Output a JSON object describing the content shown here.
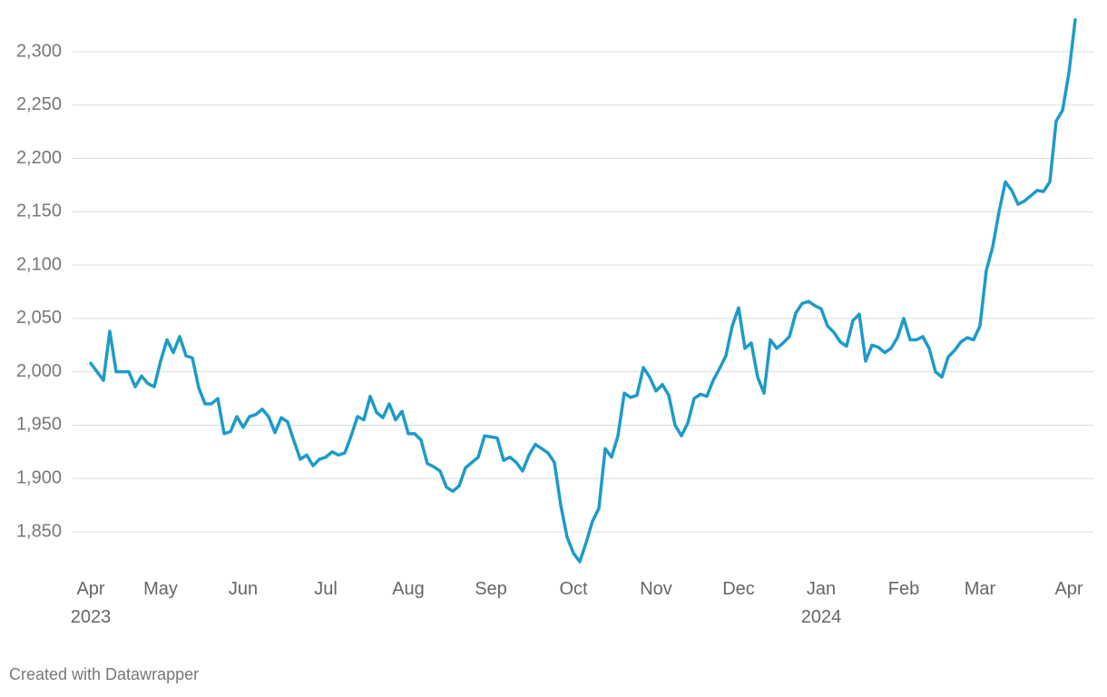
{
  "chart_data": {
    "type": "line",
    "categories": [
      "Apr 2023",
      null,
      null,
      null,
      null,
      null,
      null,
      null,
      null,
      null,
      null,
      "May",
      null,
      null,
      null,
      null,
      null,
      null,
      null,
      null,
      null,
      null,
      null,
      null,
      "Jun",
      null,
      null,
      null,
      null,
      null,
      null,
      null,
      null,
      null,
      null,
      null,
      null,
      "Jul",
      null,
      null,
      null,
      null,
      null,
      null,
      null,
      null,
      null,
      null,
      null,
      null,
      "Aug",
      null,
      null,
      null,
      null,
      null,
      null,
      null,
      null,
      null,
      null,
      null,
      null,
      "Sep",
      null,
      null,
      null,
      null,
      null,
      null,
      null,
      null,
      null,
      null,
      null,
      null,
      "Oct",
      null,
      null,
      null,
      null,
      null,
      null,
      null,
      null,
      null,
      null,
      null,
      null,
      "Nov",
      null,
      null,
      null,
      null,
      null,
      null,
      null,
      null,
      null,
      null,
      null,
      null,
      "Dec",
      null,
      null,
      null,
      null,
      null,
      null,
      null,
      null,
      null,
      null,
      null,
      null,
      "Jan 2024",
      null,
      null,
      null,
      null,
      null,
      null,
      null,
      null,
      null,
      null,
      null,
      null,
      "Feb",
      null,
      null,
      null,
      null,
      null,
      null,
      null,
      null,
      null,
      null,
      null,
      "Mar",
      null,
      null,
      null,
      null,
      null,
      null,
      null,
      null,
      null,
      null,
      null,
      null,
      null,
      "Apr",
      null
    ],
    "values": [
      2008,
      2000,
      1992,
      2038,
      2000,
      2000,
      2000,
      1986,
      1996,
      1989,
      1986,
      2010,
      2030,
      2018,
      2033,
      2015,
      2013,
      1985,
      1970,
      1970,
      1975,
      1942,
      1944,
      1958,
      1948,
      1958,
      1960,
      1965,
      1958,
      1943,
      1957,
      1953,
      1935,
      1918,
      1922,
      1912,
      1918,
      1920,
      1925,
      1922,
      1924,
      1940,
      1958,
      1955,
      1977,
      1962,
      1957,
      1970,
      1955,
      1963,
      1942,
      1942,
      1936,
      1914,
      1911,
      1907,
      1892,
      1888,
      1893,
      1910,
      1915,
      1920,
      1940,
      1939,
      1938,
      1917,
      1920,
      1915,
      1907,
      1922,
      1932,
      1928,
      1924,
      1915,
      1875,
      1845,
      1830,
      1822,
      1840,
      1860,
      1872,
      1928,
      1920,
      1940,
      1980,
      1976,
      1978,
      2004,
      1995,
      1982,
      1988,
      1978,
      1950,
      1940,
      1952,
      1975,
      1979,
      1977,
      1992,
      2003,
      2015,
      2043,
      2060,
      2022,
      2027,
      1995,
      1980,
      2030,
      2022,
      2027,
      2033,
      2055,
      2064,
      2066,
      2062,
      2059,
      2043,
      2037,
      2028,
      2024,
      2048,
      2054,
      2010,
      2025,
      2023,
      2018,
      2022,
      2032,
      2050,
      2030,
      2030,
      2033,
      2022,
      2000,
      1995,
      2014,
      2020,
      2028,
      2032,
      2030,
      2043,
      2095,
      2117,
      2150,
      2178,
      2170,
      2157,
      2160,
      2165,
      2170,
      2169,
      2178,
      2235,
      2245,
      2280,
      2330
    ],
    "color": "#1d9bc8",
    "ylim": [
      1820,
      2330
    ],
    "yticks": [
      {
        "value": 1850,
        "label": "1,850"
      },
      {
        "value": 1900,
        "label": "1,900"
      },
      {
        "value": 1950,
        "label": "1,950"
      },
      {
        "value": 2000,
        "label": "2,000"
      },
      {
        "value": 2050,
        "label": "2,050"
      },
      {
        "value": 2100,
        "label": "2,100"
      },
      {
        "value": 2150,
        "label": "2,150"
      },
      {
        "value": 2200,
        "label": "2,200"
      },
      {
        "value": 2250,
        "label": "2,250"
      },
      {
        "value": 2300,
        "label": "2,300"
      }
    ],
    "grid": true,
    "footer": "Created with Datawrapper"
  }
}
